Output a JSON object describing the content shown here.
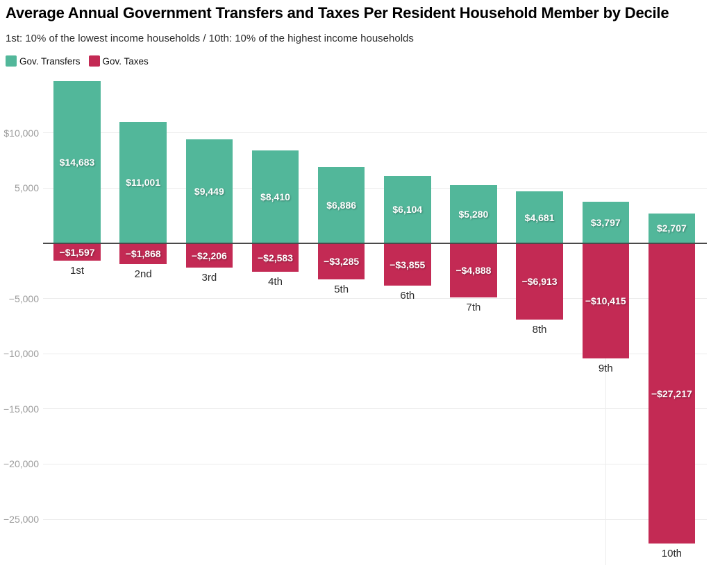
{
  "chart_data": {
    "type": "bar",
    "title": "Average Annual Government Transfers and Taxes Per Resident Household Member by Decile",
    "subtitle": "1st: 10% of the lowest income households / 10th: 10% of the highest income households",
    "categories": [
      "1st",
      "2nd",
      "3rd",
      "4th",
      "5th",
      "6th",
      "7th",
      "8th",
      "9th",
      "10th"
    ],
    "series": [
      {
        "name": "Gov. Transfers",
        "key": "gov-transfers",
        "color": "#52b79a",
        "values": [
          14683,
          11001,
          9449,
          8410,
          6886,
          6104,
          5280,
          4681,
          3797,
          2707
        ],
        "labels": [
          "$14,683",
          "$11,001",
          "$9,449",
          "$8,410",
          "$6,886",
          "$6,104",
          "$5,280",
          "$4,681",
          "$3,797",
          "$2,707"
        ]
      },
      {
        "name": "Gov. Taxes",
        "key": "gov-taxes",
        "color": "#c32a54",
        "values": [
          -1597,
          -1868,
          -2206,
          -2583,
          -3285,
          -3855,
          -4888,
          -6913,
          -10415,
          -27217
        ],
        "labels": [
          "−$1,597",
          "−$1,868",
          "−$2,206",
          "−$2,583",
          "−$3,285",
          "−$3,855",
          "−$4,888",
          "−$6,913",
          "−$10,415",
          "−$27,217"
        ]
      }
    ],
    "y_axis": {
      "ticks": [
        {
          "value": 10000,
          "label": "$10,000"
        },
        {
          "value": 5000,
          "label": "5,000"
        },
        {
          "value": -5000,
          "label": "−5,000"
        },
        {
          "value": -10000,
          "label": "−10,000"
        },
        {
          "value": -15000,
          "label": "−15,000"
        },
        {
          "value": -20000,
          "label": "−20,000"
        },
        {
          "value": -25000,
          "label": "−25,000"
        }
      ],
      "ylim": [
        -28500,
        15000
      ],
      "zero_line": true
    },
    "grid": "horizontal",
    "legend_position": "top-left",
    "value_label_text_color": "#ffffff",
    "axis_tick_color": "#9b9b9b",
    "category_label_color": "#2b2b2b",
    "zero_line_color": "#4a4a4a",
    "gridline_color": "#ebebeb"
  }
}
